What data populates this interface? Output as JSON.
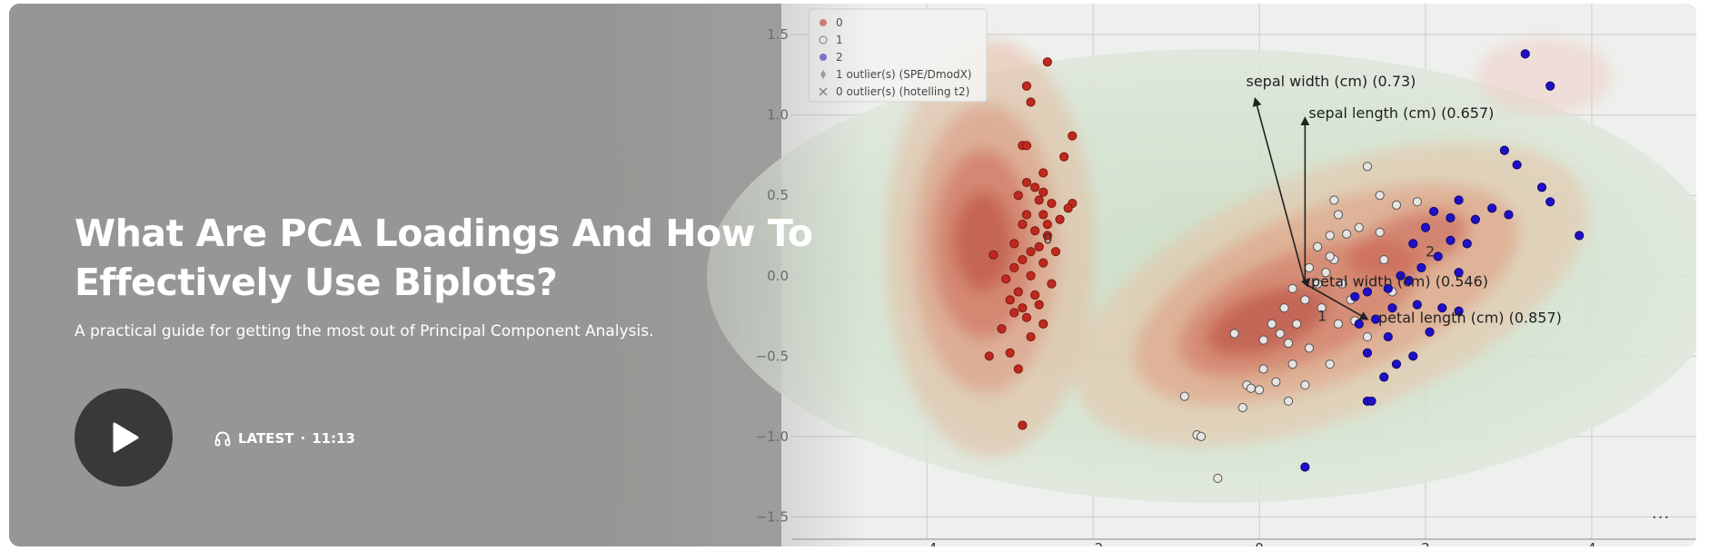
{
  "episode": {
    "title": "What Are PCA Loadings And How To Effectively Use Biplots?",
    "description": "A practical guide for getting the most out of Principal Component Analysis.",
    "badge": "LATEST",
    "separator": "·",
    "duration": "11:13",
    "more": "···"
  },
  "icons": {
    "play": "play-icon",
    "headphones": "headphones-icon",
    "more": "more-dots-icon"
  },
  "colors": {
    "title": "#ffffff",
    "play_button": "#3b3938",
    "class0": "#c0281e",
    "class1": "#e6e3e1",
    "class2": "#1f10c8"
  },
  "chart_data": {
    "type": "scatter",
    "x_ticks": [
      "−4",
      "−2",
      "0",
      "2",
      "4"
    ],
    "y_ticks": [
      "1.5",
      "1.0",
      "0.5",
      "0.0",
      "−0.5",
      "−1.0",
      "−1.5"
    ],
    "xlim": [
      -5.5,
      5.4
    ],
    "ylim": [
      -1.65,
      1.67
    ],
    "legend": {
      "placement": "top-left",
      "entries": [
        "0",
        "1",
        "2",
        "1 outlier(s) (SPE/DmodX)",
        "0 outlier(s) (hotelling t2)"
      ]
    },
    "cluster_labels": [
      {
        "text": "0",
        "x": -2.6,
        "y": 0.2
      },
      {
        "text": "1",
        "x": 0.7,
        "y": -0.28
      },
      {
        "text": "2",
        "x": 2.0,
        "y": 0.12
      }
    ],
    "loadings": [
      {
        "label": "sepal width (cm) (0.73)",
        "x": -0.6,
        "y": 1.1
      },
      {
        "label": "sepal length (cm) (0.657)",
        "x": 0.0,
        "y": 0.98
      },
      {
        "label": "petal width (cm) (0.546)",
        "x": 0.05,
        "y": -0.02
      },
      {
        "label": "petal length (cm) (0.857)",
        "x": 0.75,
        "y": -0.27
      }
    ],
    "series": [
      {
        "name": "0",
        "points": [
          [
            -2.55,
            1.33
          ],
          [
            -2.8,
            1.18
          ],
          [
            -2.75,
            1.08
          ],
          [
            -2.25,
            0.87
          ],
          [
            -2.85,
            0.81
          ],
          [
            -2.8,
            0.81
          ],
          [
            -2.35,
            0.74
          ],
          [
            -2.6,
            0.64
          ],
          [
            -2.8,
            0.58
          ],
          [
            -2.7,
            0.55
          ],
          [
            -2.9,
            0.5
          ],
          [
            -2.65,
            0.47
          ],
          [
            -2.5,
            0.45
          ],
          [
            -2.25,
            0.45
          ],
          [
            -2.8,
            0.38
          ],
          [
            -2.6,
            0.38
          ],
          [
            -2.4,
            0.35
          ],
          [
            -2.85,
            0.32
          ],
          [
            -2.7,
            0.28
          ],
          [
            -2.55,
            0.25
          ],
          [
            -2.95,
            0.2
          ],
          [
            -2.65,
            0.18
          ],
          [
            -2.45,
            0.15
          ],
          [
            -3.2,
            0.13
          ],
          [
            -2.85,
            0.1
          ],
          [
            -2.6,
            0.08
          ],
          [
            -2.95,
            0.05
          ],
          [
            -2.75,
            0.0
          ],
          [
            -3.05,
            -0.02
          ],
          [
            -2.5,
            -0.05
          ],
          [
            -2.9,
            -0.1
          ],
          [
            -2.7,
            -0.12
          ],
          [
            -3.0,
            -0.15
          ],
          [
            -2.65,
            -0.18
          ],
          [
            -2.95,
            -0.23
          ],
          [
            -2.8,
            -0.26
          ],
          [
            -2.6,
            -0.3
          ],
          [
            -3.1,
            -0.33
          ],
          [
            -2.75,
            -0.38
          ],
          [
            -3.25,
            -0.5
          ],
          [
            -3.0,
            -0.48
          ],
          [
            -2.9,
            -0.58
          ],
          [
            -2.85,
            -0.93
          ],
          [
            -2.55,
            0.32
          ],
          [
            -2.3,
            0.42
          ],
          [
            -2.75,
            0.15
          ],
          [
            -2.85,
            -0.2
          ],
          [
            -2.6,
            0.52
          ]
        ]
      },
      {
        "name": "1",
        "points": [
          [
            1.3,
            0.68
          ],
          [
            1.9,
            0.46
          ],
          [
            1.45,
            0.5
          ],
          [
            0.9,
            0.47
          ],
          [
            0.95,
            0.38
          ],
          [
            1.65,
            0.44
          ],
          [
            1.2,
            0.3
          ],
          [
            0.85,
            0.25
          ],
          [
            1.05,
            0.26
          ],
          [
            1.45,
            0.27
          ],
          [
            0.7,
            0.18
          ],
          [
            0.9,
            0.1
          ],
          [
            0.6,
            0.05
          ],
          [
            0.8,
            0.02
          ],
          [
            0.4,
            -0.08
          ],
          [
            1.0,
            -0.05
          ],
          [
            0.55,
            -0.15
          ],
          [
            0.75,
            -0.2
          ],
          [
            0.3,
            -0.2
          ],
          [
            0.45,
            -0.3
          ],
          [
            0.15,
            -0.3
          ],
          [
            -0.3,
            -0.36
          ],
          [
            0.25,
            -0.36
          ],
          [
            0.05,
            -0.4
          ],
          [
            0.35,
            -0.42
          ],
          [
            0.6,
            -0.45
          ],
          [
            0.95,
            -0.3
          ],
          [
            1.15,
            -0.28
          ],
          [
            1.3,
            -0.38
          ],
          [
            0.85,
            -0.55
          ],
          [
            0.4,
            -0.55
          ],
          [
            0.05,
            -0.58
          ],
          [
            0.55,
            -0.68
          ],
          [
            0.2,
            -0.66
          ],
          [
            -0.15,
            -0.68
          ],
          [
            0.35,
            -0.78
          ],
          [
            0.0,
            -0.71
          ],
          [
            -0.1,
            -0.7
          ],
          [
            -0.2,
            -0.82
          ],
          [
            -0.9,
            -0.75
          ],
          [
            -0.75,
            -0.99
          ],
          [
            -0.7,
            -1.0
          ],
          [
            -0.5,
            -1.26
          ],
          [
            1.1,
            -0.15
          ],
          [
            0.7,
            -0.05
          ],
          [
            0.85,
            0.12
          ],
          [
            1.5,
            0.1
          ],
          [
            1.6,
            -0.1
          ]
        ]
      },
      {
        "name": "2",
        "points": [
          [
            3.2,
            1.38
          ],
          [
            3.5,
            1.18
          ],
          [
            2.95,
            0.78
          ],
          [
            3.1,
            0.69
          ],
          [
            3.4,
            0.55
          ],
          [
            3.5,
            0.46
          ],
          [
            2.4,
            0.47
          ],
          [
            2.8,
            0.42
          ],
          [
            3.0,
            0.38
          ],
          [
            2.1,
            0.4
          ],
          [
            2.3,
            0.36
          ],
          [
            2.6,
            0.35
          ],
          [
            3.85,
            0.25
          ],
          [
            2.0,
            0.3
          ],
          [
            2.3,
            0.22
          ],
          [
            2.5,
            0.2
          ],
          [
            1.85,
            0.2
          ],
          [
            2.15,
            0.12
          ],
          [
            1.95,
            0.05
          ],
          [
            2.4,
            0.02
          ],
          [
            1.8,
            -0.03
          ],
          [
            1.55,
            -0.08
          ],
          [
            1.3,
            -0.1
          ],
          [
            1.15,
            -0.13
          ],
          [
            1.9,
            -0.18
          ],
          [
            1.6,
            -0.2
          ],
          [
            2.2,
            -0.2
          ],
          [
            2.4,
            -0.22
          ],
          [
            1.4,
            -0.27
          ],
          [
            1.2,
            -0.3
          ],
          [
            1.55,
            -0.38
          ],
          [
            1.3,
            -0.48
          ],
          [
            1.65,
            -0.55
          ],
          [
            1.85,
            -0.5
          ],
          [
            1.5,
            -0.63
          ],
          [
            1.3,
            -0.78
          ],
          [
            1.35,
            -0.78
          ],
          [
            0.55,
            -1.19
          ],
          [
            2.05,
            -0.35
          ],
          [
            1.7,
            0.0
          ]
        ]
      }
    ]
  }
}
